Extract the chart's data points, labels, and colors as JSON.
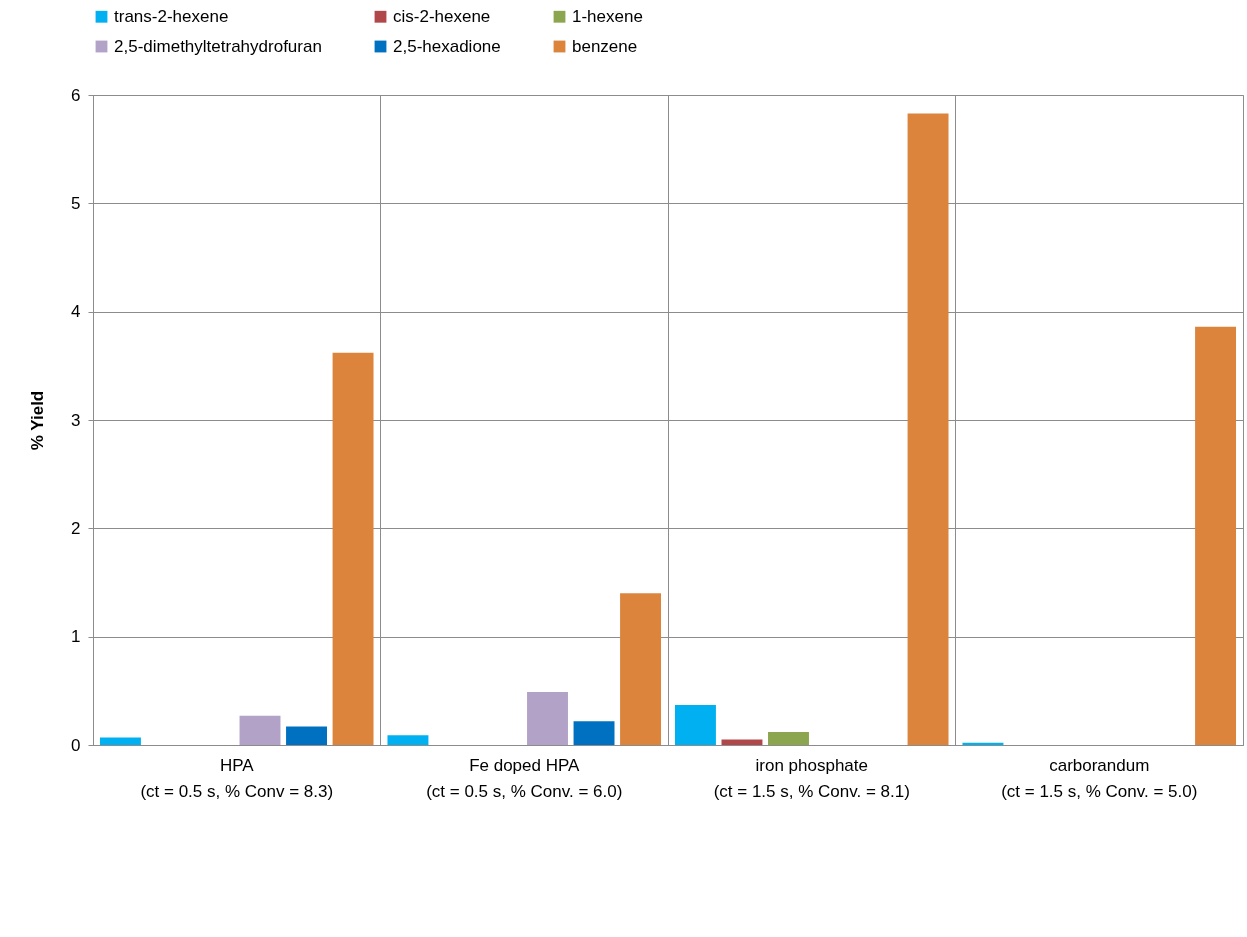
{
  "chart_data": {
    "type": "bar",
    "ylabel": "% Yield",
    "categories": [
      "HPA\n(ct = 0.5 s, % Conv = 8.3)",
      "Fe doped HPA\n(ct = 0.5 s, % Conv. = 6.0)",
      "iron phosphate\n(ct = 1.5 s, % Conv. = 8.1)",
      "carborandum\n(ct = 1.5 s, % Conv. = 5.0)"
    ],
    "series": [
      {
        "name": "trans-2-hexene",
        "color": "#00b0f0",
        "values": [
          0.07,
          0.09,
          0.37,
          0.02
        ]
      },
      {
        "name": "cis-2-hexene",
        "color": "#b0484a",
        "values": [
          null,
          null,
          0.05,
          null
        ]
      },
      {
        "name": "1-hexene",
        "color": "#8ba64f",
        "values": [
          null,
          null,
          0.12,
          null
        ]
      },
      {
        "name": "2,5-dimethyltetrahydrofuran",
        "color": "#b3a2c7",
        "values": [
          0.27,
          0.49,
          null,
          null
        ]
      },
      {
        "name": "2,5-hexadione",
        "color": "#0070c0",
        "values": [
          0.17,
          0.22,
          null,
          null
        ]
      },
      {
        "name": "benzene",
        "color": "#dc843c",
        "values": [
          3.62,
          1.4,
          5.83,
          3.86
        ]
      }
    ],
    "ylim": [
      0,
      6
    ],
    "yticks": [
      0,
      1,
      2,
      3,
      4,
      5,
      6
    ],
    "grid": true,
    "legend": "top"
  }
}
